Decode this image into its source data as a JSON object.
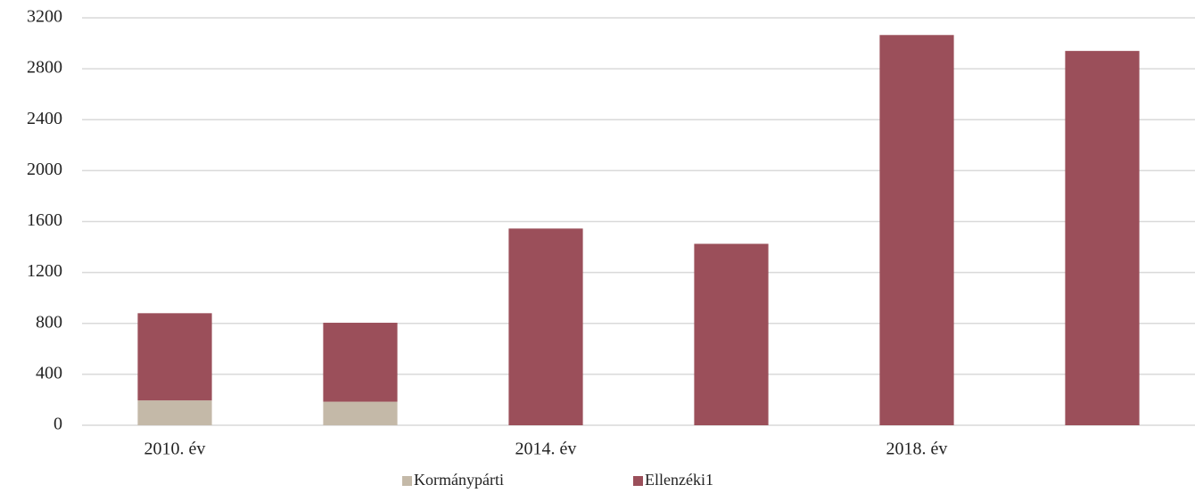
{
  "chart_data": {
    "type": "stacked_bar",
    "categories": [
      "2010. év",
      null,
      "2014. év",
      null,
      "2018. év",
      null
    ],
    "series": [
      {
        "name": "Kormánypárti",
        "color": "#c4b9a8",
        "values": [
          195,
          185,
          0,
          0,
          0,
          0
        ]
      },
      {
        "name": "Ellenzéki1",
        "color": "#9b4f5a",
        "values": [
          685,
          620,
          1545,
          1425,
          3065,
          2940
        ]
      }
    ],
    "ylim": [
      0,
      3200
    ],
    "yticks": [
      0,
      400,
      800,
      1200,
      1600,
      2000,
      2400,
      2800,
      3200
    ],
    "grid": true,
    "legend": "bottom"
  }
}
